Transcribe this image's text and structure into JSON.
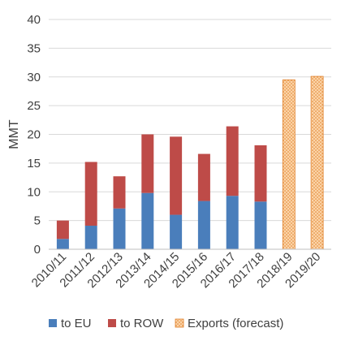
{
  "chart_data": {
    "type": "bar",
    "stacked": true,
    "ylabel": "MMT",
    "ylim": [
      0,
      40
    ],
    "yticks": [
      0,
      5,
      10,
      15,
      20,
      25,
      30,
      35,
      40
    ],
    "grid": "horizontal",
    "legend_position": "bottom",
    "categories": [
      "2010/11",
      "2011/12",
      "2012/13",
      "2013/14",
      "2014/15",
      "2015/16",
      "2016/17",
      "2017/18",
      "2018/19",
      "2019/20"
    ],
    "series": [
      {
        "name": "to EU",
        "color": "#4a7ebb",
        "values": [
          1.8,
          4.1,
          7.1,
          9.8,
          6.0,
          8.4,
          9.3,
          8.3,
          null,
          null
        ]
      },
      {
        "name": "to ROW",
        "color": "#be4b48",
        "values": [
          3.2,
          11.1,
          5.6,
          10.2,
          13.6,
          8.2,
          12.1,
          9.8,
          null,
          null
        ]
      },
      {
        "name": "Exports (forecast)",
        "color": "#f9c58e",
        "pattern": "dotted-orange",
        "values": [
          null,
          null,
          null,
          null,
          null,
          null,
          null,
          null,
          29.5,
          30.1
        ]
      }
    ]
  }
}
